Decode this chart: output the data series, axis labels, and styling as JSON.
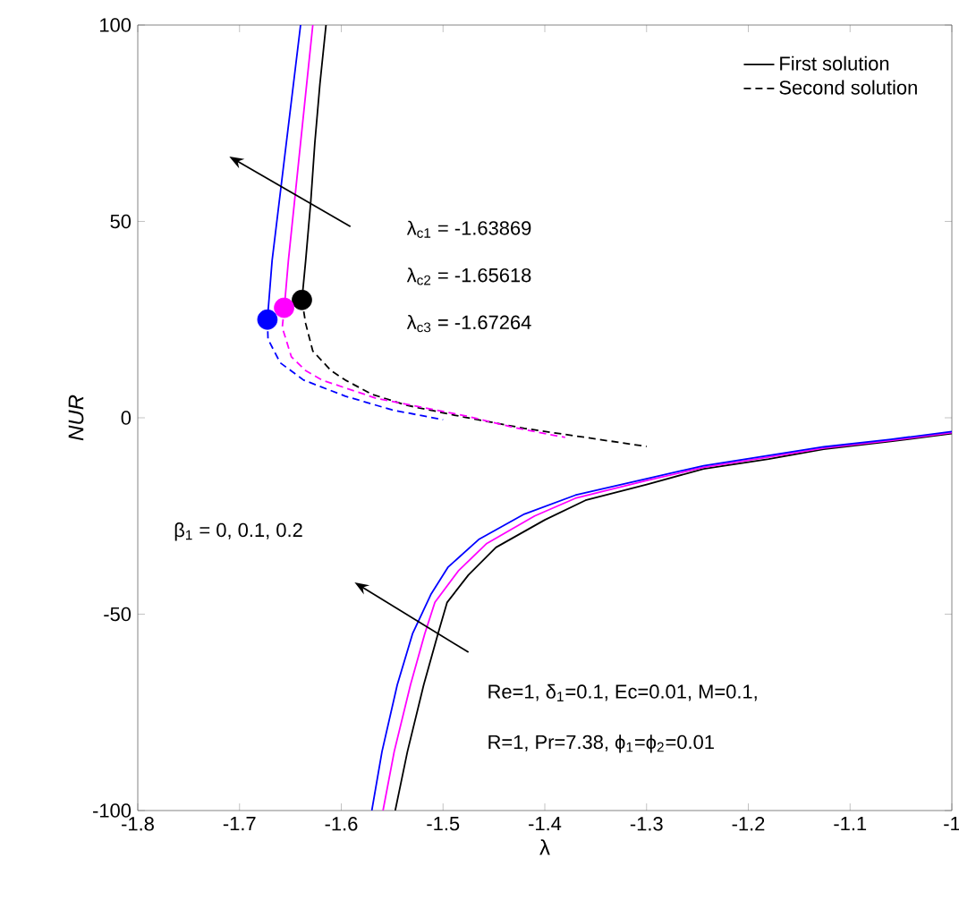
{
  "chart_data": {
    "type": "line",
    "xlabel": "λ",
    "ylabel": "NUR",
    "xlim": [
      -1.8,
      -1
    ],
    "ylim": [
      -100,
      100
    ],
    "xticks": [
      -1.8,
      -1.7,
      -1.6,
      -1.5,
      -1.4,
      -1.3,
      -1.2,
      -1.1,
      -1
    ],
    "yticks": [
      -100,
      -50,
      0,
      50,
      100
    ],
    "grid": false,
    "legend": "top right",
    "annotations": [
      "λ$_{c1}$ = -1.63869",
      "λ$_{c2}$ = -1.65618",
      "λ$_{c3}$ = -1.67264",
      "β$_{1}$ = 0, 0.1, 0.2",
      "Re=1, δ$_{1}$=0.1, Ec=0.01, M=0.1,",
      "R=1, Pr=7.38, ϕ$_{1}$=ϕ$_{2}$=0.01"
    ],
    "series": [
      {
        "name": "First solution",
        "line_style": "solid",
        "color": "#000000",
        "x": [
          -1.6387,
          -1.635,
          -1.63,
          -1.626,
          -1.621,
          -1.615
        ],
        "values": [
          30,
          40,
          55,
          70,
          85,
          100
        ]
      },
      {
        "line_style": "solid",
        "color": "#ff00ff",
        "x": [
          -1.656,
          -1.652,
          -1.646,
          -1.64,
          -1.634,
          -1.628
        ],
        "values": [
          28,
          40,
          55,
          70,
          85,
          100
        ]
      },
      {
        "line_style": "solid",
        "color": "#0000ff",
        "x": [
          -1.6726,
          -1.668,
          -1.661,
          -1.654,
          -1.647,
          -1.64
        ],
        "values": [
          25,
          40,
          55,
          70,
          85,
          100
        ]
      },
      {
        "name": "Second solution",
        "line_style": "dashed",
        "color": "#000000",
        "x": [
          -1.6387,
          -1.635,
          -1.628,
          -1.61,
          -1.596,
          -1.57,
          -1.536,
          -1.48,
          -1.42,
          -1.36,
          -1.3
        ],
        "values": [
          30,
          24,
          17,
          12,
          9.6,
          6,
          3.2,
          0.2,
          -2.7,
          -5,
          -7.3
        ]
      },
      {
        "line_style": "dashed",
        "color": "#ff00ff",
        "x": [
          -1.656,
          -1.658,
          -1.649,
          -1.635,
          -1.619,
          -1.566,
          -1.478,
          -1.43,
          -1.38
        ],
        "values": [
          28,
          23,
          15.5,
          12,
          9.6,
          5,
          0.5,
          -2.5,
          -5
        ]
      },
      {
        "line_style": "dashed",
        "color": "#0000ff",
        "x": [
          -1.6726,
          -1.672,
          -1.66,
          -1.637,
          -1.596,
          -1.55,
          -1.5
        ],
        "values": [
          25,
          20,
          14,
          9.6,
          5.5,
          2,
          -0.5
        ]
      },
      {
        "line_style": "solid",
        "color": "#000000",
        "x": [
          -1.547,
          -1.535,
          -1.519,
          -1.505,
          -1.496,
          -1.475,
          -1.448,
          -1.4,
          -1.36,
          -1.3,
          -1.244,
          -1.18,
          -1.126,
          -1.06,
          -1
        ],
        "values": [
          -100,
          -85,
          -68,
          -55,
          -47,
          -40,
          -33,
          -26,
          -21,
          -17,
          -13,
          -10.5,
          -8,
          -6,
          -4
        ]
      },
      {
        "line_style": "solid",
        "color": "#ff00ff",
        "x": [
          -1.559,
          -1.548,
          -1.532,
          -1.518,
          -1.508,
          -1.485,
          -1.457,
          -1.41,
          -1.37,
          -1.3,
          -1.244,
          -1.18,
          -1.126,
          -1.06,
          -1
        ],
        "values": [
          -100,
          -85,
          -68,
          -55,
          -47,
          -39,
          -32,
          -25,
          -20.5,
          -16,
          -12.6,
          -10,
          -7.7,
          -5.8,
          -3.8
        ]
      },
      {
        "line_style": "solid",
        "color": "#0000ff",
        "x": [
          -1.57,
          -1.56,
          -1.545,
          -1.53,
          -1.512,
          -1.495,
          -1.465,
          -1.42,
          -1.37,
          -1.3,
          -1.244,
          -1.18,
          -1.126,
          -1.06,
          -1
        ],
        "values": [
          -100,
          -85,
          -68,
          -55,
          -45,
          -38,
          -31,
          -24.5,
          -19.7,
          -15.5,
          -12.2,
          -9.6,
          -7.4,
          -5.5,
          -3.5
        ]
      },
      {
        "type": "scatter",
        "marker": "circle",
        "x": [
          -1.6387,
          -1.6562,
          -1.6726
        ],
        "values": [
          30,
          28,
          25
        ],
        "colors": [
          "#000000",
          "#ff00ff",
          "#0000ff"
        ]
      }
    ]
  }
}
